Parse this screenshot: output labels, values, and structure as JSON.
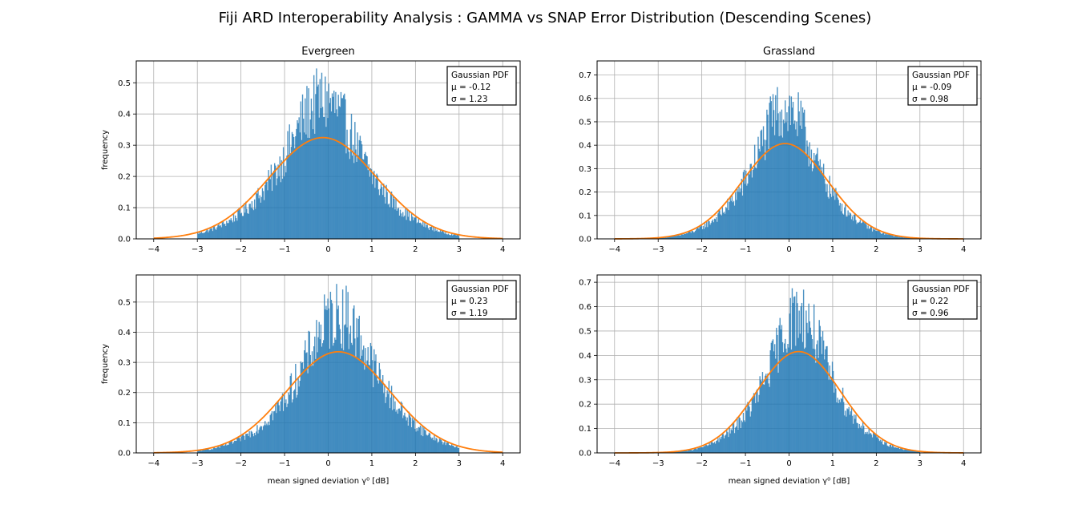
{
  "figure": {
    "title": "Fiji ARD Interoperability Analysis : GAMMA vs SNAP Error Distribution (Descending Scenes)"
  },
  "colors": {
    "histogram": "#1f77b4",
    "gaussian_curve": "#ff7f0e",
    "grid": "#b0b0b0"
  },
  "chart_data": [
    {
      "type": "bar",
      "title": "Evergreen",
      "xlabel": "",
      "ylabel": "frequency",
      "xlim": [
        -4.4,
        4.4
      ],
      "ylim": [
        0,
        0.57
      ],
      "xticks": [
        -4,
        -3,
        -2,
        -1,
        0,
        1,
        2,
        3,
        4
      ],
      "yticks": [
        0.0,
        0.1,
        0.2,
        0.3,
        0.4,
        0.5
      ],
      "data_range": [
        -3,
        3
      ],
      "grid": true,
      "legend": {
        "position": "top-right",
        "lines": [
          "Gaussian PDF",
          "μ = -0.12",
          "σ = 1.23"
        ]
      },
      "gaussian": {
        "mu": -0.12,
        "sigma": 1.23
      }
    },
    {
      "type": "bar",
      "title": "Grassland",
      "xlabel": "",
      "ylabel": "",
      "xlim": [
        -4.4,
        4.4
      ],
      "ylim": [
        0,
        0.76
      ],
      "xticks": [
        -4,
        -3,
        -2,
        -1,
        0,
        1,
        2,
        3,
        4
      ],
      "yticks": [
        0.0,
        0.1,
        0.2,
        0.3,
        0.4,
        0.5,
        0.6,
        0.7
      ],
      "data_range": [
        -3,
        3
      ],
      "grid": true,
      "legend": {
        "position": "top-right",
        "lines": [
          "Gaussian PDF",
          "μ = -0.09",
          "σ = 0.98"
        ]
      },
      "gaussian": {
        "mu": -0.09,
        "sigma": 0.98
      }
    },
    {
      "type": "bar",
      "title": "",
      "xlabel": "mean signed deviation γ⁰ [dB]",
      "ylabel": "frequency",
      "xlim": [
        -4.4,
        4.4
      ],
      "ylim": [
        0,
        0.59
      ],
      "xticks": [
        -4,
        -3,
        -2,
        -1,
        0,
        1,
        2,
        3,
        4
      ],
      "yticks": [
        0.0,
        0.1,
        0.2,
        0.3,
        0.4,
        0.5
      ],
      "data_range": [
        -3,
        3
      ],
      "grid": true,
      "legend": {
        "position": "top-right",
        "lines": [
          "Gaussian PDF",
          "μ = 0.23",
          "σ = 1.19"
        ]
      },
      "gaussian": {
        "mu": 0.23,
        "sigma": 1.19
      }
    },
    {
      "type": "bar",
      "title": "",
      "xlabel": "mean signed deviation γ⁰ [dB]",
      "ylabel": "",
      "xlim": [
        -4.4,
        4.4
      ],
      "ylim": [
        0,
        0.73
      ],
      "xticks": [
        -4,
        -3,
        -2,
        -1,
        0,
        1,
        2,
        3,
        4
      ],
      "yticks": [
        0.0,
        0.1,
        0.2,
        0.3,
        0.4,
        0.5,
        0.6,
        0.7
      ],
      "data_range": [
        -3,
        3
      ],
      "grid": true,
      "legend": {
        "position": "top-right",
        "lines": [
          "Gaussian PDF",
          "μ = 0.22",
          "σ = 0.96"
        ]
      },
      "gaussian": {
        "mu": 0.22,
        "sigma": 0.96
      }
    }
  ]
}
